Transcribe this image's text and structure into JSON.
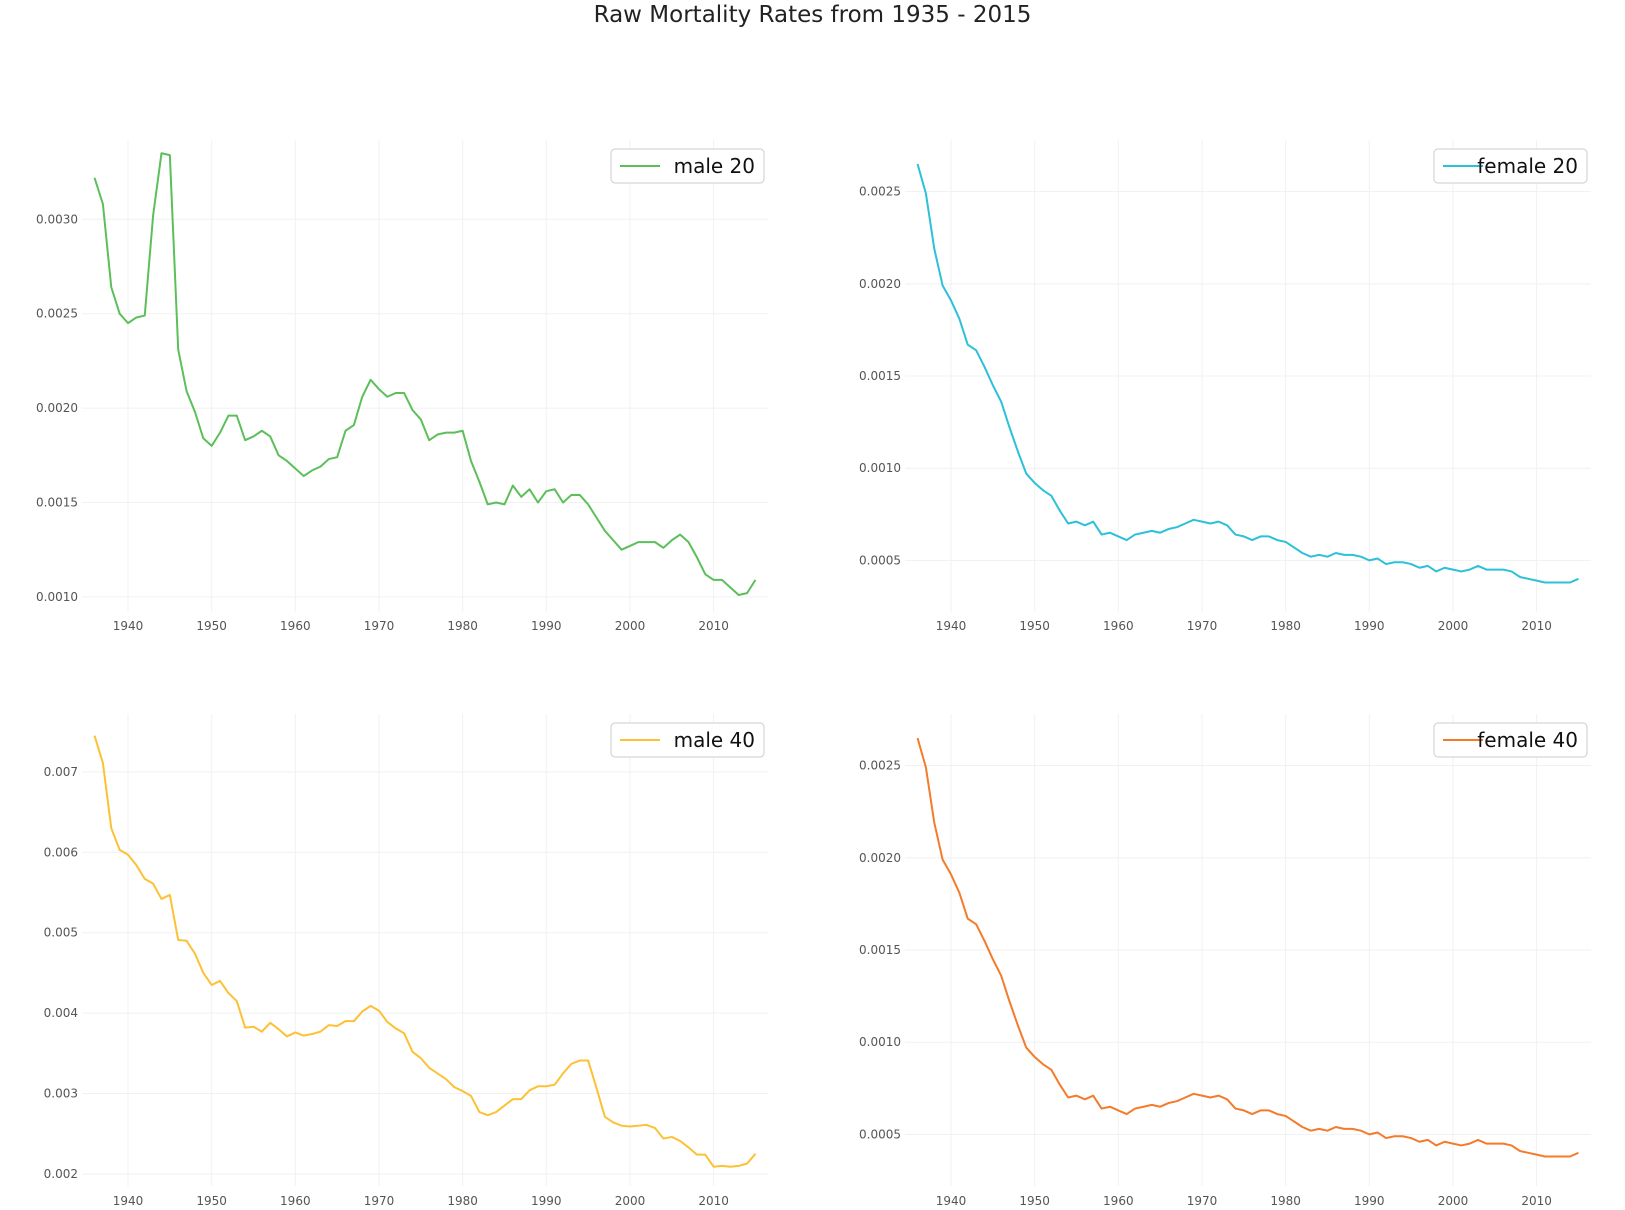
{
  "figure": {
    "title": "Raw Mortality Rates from 1935 - 2015"
  },
  "chart_data": [
    {
      "type": "line",
      "series": [
        {
          "name": "male 20",
          "color": "#5cbf5a"
        }
      ],
      "x": [
        1936,
        1937,
        1938,
        1939,
        1940,
        1941,
        1942,
        1943,
        1944,
        1945,
        1946,
        1947,
        1948,
        1949,
        1950,
        1951,
        1952,
        1953,
        1954,
        1955,
        1956,
        1957,
        1958,
        1959,
        1960,
        1961,
        1962,
        1963,
        1964,
        1965,
        1966,
        1967,
        1968,
        1969,
        1970,
        1971,
        1972,
        1973,
        1974,
        1975,
        1976,
        1977,
        1978,
        1979,
        1980,
        1981,
        1982,
        1983,
        1984,
        1985,
        1986,
        1987,
        1988,
        1989,
        1990,
        1991,
        1992,
        1993,
        1994,
        1995,
        1996,
        1997,
        1998,
        1999,
        2000,
        2001,
        2002,
        2003,
        2004,
        2005,
        2006,
        2007,
        2008,
        2009,
        2010,
        2011,
        2012,
        2013,
        2014,
        2015
      ],
      "values": [
        0.00322,
        0.00308,
        0.00264,
        0.0025,
        0.00245,
        0.00248,
        0.00249,
        0.00302,
        0.00335,
        0.00334,
        0.00231,
        0.00209,
        0.00198,
        0.00184,
        0.0018,
        0.00187,
        0.00196,
        0.00196,
        0.00183,
        0.00185,
        0.00188,
        0.00185,
        0.00175,
        0.00172,
        0.00168,
        0.00164,
        0.00167,
        0.00169,
        0.00173,
        0.00174,
        0.00188,
        0.00191,
        0.00206,
        0.00215,
        0.0021,
        0.00206,
        0.00208,
        0.00208,
        0.00199,
        0.00194,
        0.00183,
        0.00186,
        0.00187,
        0.00187,
        0.00188,
        0.00172,
        0.00161,
        0.00149,
        0.0015,
        0.00149,
        0.00159,
        0.00153,
        0.00157,
        0.0015,
        0.00156,
        0.00157,
        0.0015,
        0.00154,
        0.00154,
        0.00149,
        0.00142,
        0.00135,
        0.0013,
        0.00125,
        0.00127,
        0.00129,
        0.00129,
        0.00129,
        0.00126,
        0.0013,
        0.00133,
        0.00129,
        0.00121,
        0.00112,
        0.00109,
        0.00109,
        0.00105,
        0.00101,
        0.00102,
        0.00109
      ],
      "xlim": [
        1934.5,
        2016.5
      ],
      "ylim": [
        0.00092,
        0.00342
      ],
      "xticks": [
        1940,
        1950,
        1960,
        1970,
        1980,
        1990,
        2000,
        2010
      ],
      "yticks": [
        0.001,
        0.0015,
        0.002,
        0.0025,
        0.003
      ],
      "ytick_labels": [
        "0.0010",
        "0.0015",
        "0.0020",
        "0.0025",
        "0.0030"
      ],
      "legend": "top-right",
      "grid": true
    },
    {
      "type": "line",
      "series": [
        {
          "name": "female 20",
          "color": "#2cc0d9"
        }
      ],
      "x": [
        1936,
        1937,
        1938,
        1939,
        1940,
        1941,
        1942,
        1943,
        1944,
        1945,
        1946,
        1947,
        1948,
        1949,
        1950,
        1951,
        1952,
        1953,
        1954,
        1955,
        1956,
        1957,
        1958,
        1959,
        1960,
        1961,
        1962,
        1963,
        1964,
        1965,
        1966,
        1967,
        1968,
        1969,
        1970,
        1971,
        1972,
        1973,
        1974,
        1975,
        1976,
        1977,
        1978,
        1979,
        1980,
        1981,
        1982,
        1983,
        1984,
        1985,
        1986,
        1987,
        1988,
        1989,
        1990,
        1991,
        1992,
        1993,
        1994,
        1995,
        1996,
        1997,
        1998,
        1999,
        2000,
        2001,
        2002,
        2003,
        2004,
        2005,
        2006,
        2007,
        2008,
        2009,
        2010,
        2011,
        2012,
        2013,
        2014,
        2015
      ],
      "values": [
        0.00265,
        0.00249,
        0.00219,
        0.00199,
        0.00191,
        0.00181,
        0.00167,
        0.00164,
        0.00155,
        0.00145,
        0.00136,
        0.00122,
        0.00109,
        0.00097,
        0.00092,
        0.00088,
        0.00085,
        0.00077,
        0.0007,
        0.00071,
        0.00069,
        0.00071,
        0.00064,
        0.00065,
        0.00063,
        0.00061,
        0.00064,
        0.00065,
        0.00066,
        0.00065,
        0.00067,
        0.00068,
        0.0007,
        0.00072,
        0.00071,
        0.0007,
        0.00071,
        0.00069,
        0.00064,
        0.00063,
        0.00061,
        0.00063,
        0.00063,
        0.00061,
        0.0006,
        0.00057,
        0.00054,
        0.00052,
        0.00053,
        0.00052,
        0.00054,
        0.00053,
        0.00053,
        0.00052,
        0.0005,
        0.00051,
        0.00048,
        0.00049,
        0.00049,
        0.00048,
        0.00046,
        0.00047,
        0.00044,
        0.00046,
        0.00045,
        0.00044,
        0.00045,
        0.00047,
        0.00045,
        0.00045,
        0.00045,
        0.00044,
        0.00041,
        0.0004,
        0.00039,
        0.00038,
        0.00038,
        0.00038,
        0.00038,
        0.0004
      ],
      "xlim": [
        1934.5,
        2016.5
      ],
      "ylim": [
        0.00022,
        0.00278
      ],
      "xticks": [
        1940,
        1950,
        1960,
        1970,
        1980,
        1990,
        2000,
        2010
      ],
      "yticks": [
        0.0005,
        0.001,
        0.0015,
        0.002,
        0.0025
      ],
      "ytick_labels": [
        "0.0005",
        "0.0010",
        "0.0015",
        "0.0020",
        "0.0025"
      ],
      "legend": "top-right",
      "grid": true
    },
    {
      "type": "line",
      "series": [
        {
          "name": "male 40",
          "color": "#fcc134"
        }
      ],
      "x": [
        1936,
        1937,
        1938,
        1939,
        1940,
        1941,
        1942,
        1943,
        1944,
        1945,
        1946,
        1947,
        1948,
        1949,
        1950,
        1951,
        1952,
        1953,
        1954,
        1955,
        1956,
        1957,
        1958,
        1959,
        1960,
        1961,
        1962,
        1963,
        1964,
        1965,
        1966,
        1967,
        1968,
        1969,
        1970,
        1971,
        1972,
        1973,
        1974,
        1975,
        1976,
        1977,
        1978,
        1979,
        1980,
        1981,
        1982,
        1983,
        1984,
        1985,
        1986,
        1987,
        1988,
        1989,
        1990,
        1991,
        1992,
        1993,
        1994,
        1995,
        1996,
        1997,
        1998,
        1999,
        2000,
        2001,
        2002,
        2003,
        2004,
        2005,
        2006,
        2007,
        2008,
        2009,
        2010,
        2011,
        2012,
        2013,
        2014,
        2015
      ],
      "values": [
        0.00745,
        0.00711,
        0.0063,
        0.00603,
        0.00597,
        0.00584,
        0.00567,
        0.00561,
        0.00542,
        0.00547,
        0.00491,
        0.0049,
        0.00474,
        0.0045,
        0.00435,
        0.0044,
        0.00425,
        0.00415,
        0.00382,
        0.00383,
        0.00377,
        0.00388,
        0.0038,
        0.00371,
        0.00376,
        0.00372,
        0.00374,
        0.00377,
        0.00385,
        0.00384,
        0.0039,
        0.0039,
        0.00402,
        0.00409,
        0.00403,
        0.00389,
        0.00381,
        0.00375,
        0.00352,
        0.00344,
        0.00332,
        0.00325,
        0.00318,
        0.00308,
        0.00303,
        0.00297,
        0.00277,
        0.00273,
        0.00277,
        0.00285,
        0.00293,
        0.00293,
        0.00304,
        0.00309,
        0.00309,
        0.00311,
        0.00325,
        0.00337,
        0.00341,
        0.00341,
        0.00307,
        0.00271,
        0.00264,
        0.0026,
        0.00259,
        0.0026,
        0.00261,
        0.00257,
        0.00244,
        0.00246,
        0.00241,
        0.00233,
        0.00224,
        0.00224,
        0.00209,
        0.0021,
        0.00209,
        0.0021,
        0.00213,
        0.00225
      ],
      "xlim": [
        1934.5,
        2016.5
      ],
      "ylim": [
        0.00185,
        0.00772
      ],
      "xticks": [
        1940,
        1950,
        1960,
        1970,
        1980,
        1990,
        2000,
        2010
      ],
      "yticks": [
        0.002,
        0.003,
        0.004,
        0.005,
        0.006,
        0.007
      ],
      "ytick_labels": [
        "0.002",
        "0.003",
        "0.004",
        "0.005",
        "0.006",
        "0.007"
      ],
      "legend": "top-right",
      "grid": true
    },
    {
      "type": "line",
      "series": [
        {
          "name": "female 40",
          "color": "#f47b2a"
        }
      ],
      "x": [
        1936,
        1937,
        1938,
        1939,
        1940,
        1941,
        1942,
        1943,
        1944,
        1945,
        1946,
        1947,
        1948,
        1949,
        1950,
        1951,
        1952,
        1953,
        1954,
        1955,
        1956,
        1957,
        1958,
        1959,
        1960,
        1961,
        1962,
        1963,
        1964,
        1965,
        1966,
        1967,
        1968,
        1969,
        1970,
        1971,
        1972,
        1973,
        1974,
        1975,
        1976,
        1977,
        1978,
        1979,
        1980,
        1981,
        1982,
        1983,
        1984,
        1985,
        1986,
        1987,
        1988,
        1989,
        1990,
        1991,
        1992,
        1993,
        1994,
        1995,
        1996,
        1997,
        1998,
        1999,
        2000,
        2001,
        2002,
        2003,
        2004,
        2005,
        2006,
        2007,
        2008,
        2009,
        2010,
        2011,
        2012,
        2013,
        2014,
        2015
      ],
      "values": [
        0.00265,
        0.00249,
        0.00219,
        0.00199,
        0.00191,
        0.00181,
        0.00167,
        0.00164,
        0.00155,
        0.00145,
        0.00136,
        0.00122,
        0.00109,
        0.00097,
        0.00092,
        0.00088,
        0.00085,
        0.00077,
        0.0007,
        0.00071,
        0.00069,
        0.00071,
        0.00064,
        0.00065,
        0.00063,
        0.00061,
        0.00064,
        0.00065,
        0.00066,
        0.00065,
        0.00067,
        0.00068,
        0.0007,
        0.00072,
        0.00071,
        0.0007,
        0.00071,
        0.00069,
        0.00064,
        0.00063,
        0.00061,
        0.00063,
        0.00063,
        0.00061,
        0.0006,
        0.00057,
        0.00054,
        0.00052,
        0.00053,
        0.00052,
        0.00054,
        0.00053,
        0.00053,
        0.00052,
        0.0005,
        0.00051,
        0.00048,
        0.00049,
        0.00049,
        0.00048,
        0.00046,
        0.00047,
        0.00044,
        0.00046,
        0.00045,
        0.00044,
        0.00045,
        0.00047,
        0.00045,
        0.00045,
        0.00045,
        0.00044,
        0.00041,
        0.0004,
        0.00039,
        0.00038,
        0.00038,
        0.00038,
        0.00038,
        0.0004
      ],
      "xlim": [
        1934.5,
        2016.5
      ],
      "ylim": [
        0.00022,
        0.00278
      ],
      "xticks": [
        1940,
        1950,
        1960,
        1970,
        1980,
        1990,
        2000,
        2010
      ],
      "yticks": [
        0.0005,
        0.001,
        0.0015,
        0.002,
        0.0025
      ],
      "ytick_labels": [
        "0.0005",
        "0.0010",
        "0.0015",
        "0.0020",
        "0.0025"
      ],
      "legend": "top-right",
      "grid": true
    }
  ]
}
